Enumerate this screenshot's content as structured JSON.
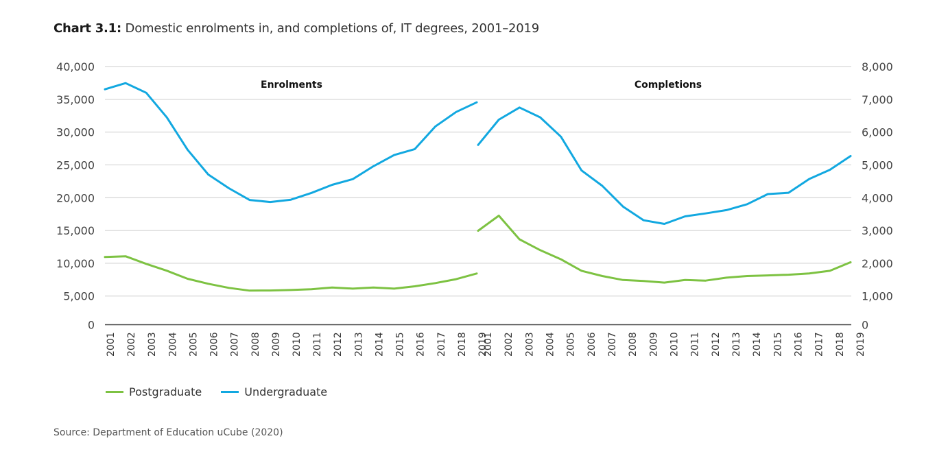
{
  "title": {
    "label": "Chart 3.1:",
    "text": "Domestic enrolments in, and completions of, IT degrees, 2001–2019"
  },
  "source": "Source: Department of Education uCube (2020)",
  "colors": {
    "postgraduate": "#7dc242",
    "undergraduate": "#12a8e0",
    "grid": "#cccccc",
    "axis": "#444444"
  },
  "chart_data": [
    {
      "type": "line",
      "title": "Enrolments",
      "axis": "left",
      "ylim": [
        0,
        40000
      ],
      "yticks": [
        "0",
        "5,000",
        "10,000",
        "15,000",
        "20,000",
        "25,000",
        "30,000",
        "35,000",
        "40,000"
      ],
      "ytick_values": [
        0,
        5000,
        10000,
        15000,
        20000,
        25000,
        30000,
        35000,
        40000
      ],
      "x": [
        "2001",
        "2002",
        "2003",
        "2004",
        "2005",
        "2006",
        "2007",
        "2008",
        "2009",
        "2010",
        "2011",
        "2012",
        "2013",
        "2014",
        "2015",
        "2016",
        "2017",
        "2018",
        "2019"
      ],
      "grid": true,
      "series": [
        {
          "name": "Postgraduate",
          "color_key": "postgraduate",
          "values": [
            10950,
            11060,
            9900,
            8860,
            7630,
            6870,
            6240,
            5820,
            5850,
            5920,
            6030,
            6310,
            6130,
            6310,
            6130,
            6480,
            6970,
            7570,
            8440
          ]
        },
        {
          "name": "Undergraduate",
          "color_key": "undergraduate",
          "values": [
            36530,
            37470,
            36000,
            32230,
            27310,
            23530,
            21440,
            19650,
            19340,
            19690,
            20730,
            21960,
            22830,
            24790,
            26500,
            27410,
            30870,
            33070,
            34540
          ]
        }
      ]
    },
    {
      "type": "line",
      "title": "Completions",
      "axis": "right",
      "ylim": [
        0,
        8000
      ],
      "yticks": [
        "0",
        "1,000",
        "2,000",
        "3,000",
        "4,000",
        "5,000",
        "6,000",
        "7,000",
        "8,000"
      ],
      "ytick_values": [
        0,
        1000,
        2000,
        3000,
        4000,
        5000,
        6000,
        7000,
        8000
      ],
      "x": [
        "2001",
        "2002",
        "2003",
        "2004",
        "2005",
        "2006",
        "2007",
        "2008",
        "2009",
        "2010",
        "2011",
        "2012",
        "2013",
        "2014",
        "2015",
        "2016",
        "2017",
        "2018",
        "2019"
      ],
      "grid": true,
      "series": [
        {
          "name": "Postgraduate",
          "color_key": "postgraduate",
          "values": [
            2990,
            3450,
            2730,
            2400,
            2120,
            1770,
            1610,
            1490,
            1460,
            1410,
            1490,
            1470,
            1560,
            1610,
            1630,
            1650,
            1690,
            1770,
            2030
          ]
        },
        {
          "name": "Undergraduate",
          "color_key": "undergraduate",
          "values": [
            5610,
            6380,
            6750,
            6450,
            5860,
            4830,
            4360,
            3730,
            3310,
            3200,
            3430,
            3520,
            3620,
            3800,
            4110,
            4150,
            4570,
            4850,
            5270
          ]
        }
      ]
    }
  ],
  "legend": {
    "placement": "bottom-left",
    "items": [
      {
        "label": "Postgraduate",
        "color_key": "postgraduate"
      },
      {
        "label": "Undergraduate",
        "color_key": "undergraduate"
      }
    ]
  }
}
